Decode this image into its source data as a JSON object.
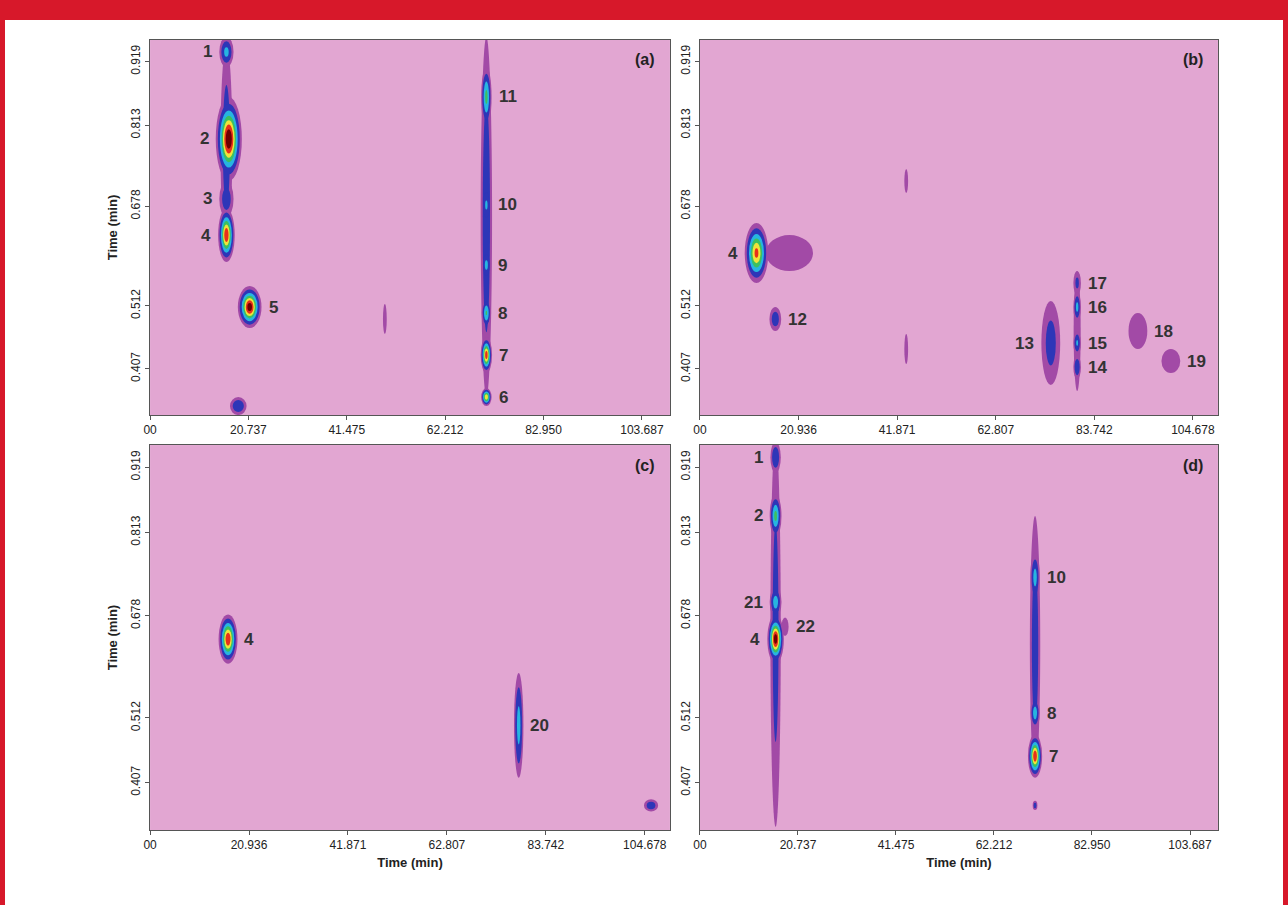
{
  "chart_data": [
    {
      "type": "contour",
      "panel": "(a)",
      "ylabel": "Time (min)",
      "xlim": [
        0,
        109.6
      ],
      "xticks": [
        {
          "value": 0,
          "label": "00"
        },
        20.737,
        41.475,
        62.212,
        {
          "value": 82.95,
          "label": "82.950"
        },
        103.687
      ],
      "ylim": [
        0.33,
        0.955
      ],
      "yticks": [
        0.407,
        0.512,
        0.678,
        0.813,
        0.919
      ],
      "spots": [
        {
          "x": 16.1,
          "y": 0.78,
          "w": 2.5,
          "h": 0.33,
          "z": 0.2
        },
        {
          "label": "1",
          "x": 16.1,
          "y": 0.935,
          "w": 3,
          "h": 0.05,
          "z": 0.3
        },
        {
          "label": "2",
          "x": 16.6,
          "y": 0.79,
          "w": 5.5,
          "h": 0.14,
          "z": 1.0
        },
        {
          "label": "3",
          "x": 16.1,
          "y": 0.69,
          "w": 3,
          "h": 0.06,
          "z": 0.2
        },
        {
          "label": "4",
          "x": 16.1,
          "y": 0.63,
          "w": 3.5,
          "h": 0.09,
          "z": 0.85
        },
        {
          "label": "5",
          "x": 21,
          "y": 0.51,
          "w": 5,
          "h": 0.07,
          "z": 0.95
        },
        {
          "x": 18.6,
          "y": 0.345,
          "w": 3.5,
          "h": 0.03,
          "z": 0.25
        },
        {
          "x": 49.5,
          "y": 0.49,
          "w": 0.8,
          "h": 0.05,
          "z": 0.1
        },
        {
          "x": 70.9,
          "y": 0.66,
          "w": 2.4,
          "h": 0.6,
          "z": 0.22
        },
        {
          "label": "11",
          "x": 70.9,
          "y": 0.86,
          "w": 2.2,
          "h": 0.1,
          "z": 0.45
        },
        {
          "label": "10",
          "x": 70.9,
          "y": 0.68,
          "w": 2,
          "h": 0.06,
          "z": 0.28
        },
        {
          "label": "9",
          "x": 70.9,
          "y": 0.58,
          "w": 2,
          "h": 0.05,
          "z": 0.3
        },
        {
          "label": "8",
          "x": 70.9,
          "y": 0.5,
          "w": 2,
          "h": 0.05,
          "z": 0.42
        },
        {
          "label": "7",
          "x": 70.9,
          "y": 0.43,
          "w": 2.4,
          "h": 0.06,
          "z": 0.8
        },
        {
          "label": "6",
          "x": 70.9,
          "y": 0.36,
          "w": 2.2,
          "h": 0.03,
          "z": 0.7
        }
      ]
    },
    {
      "type": "contour",
      "panel": "(b)",
      "xlim": [
        0,
        110
      ],
      "xticks": [
        {
          "value": 0,
          "label": "00"
        },
        20.936,
        41.871,
        62.807,
        83.742,
        104.678
      ],
      "ylim": [
        0.33,
        0.955
      ],
      "yticks": [
        0.407,
        0.512,
        0.678,
        0.813,
        0.919
      ],
      "spots": [
        {
          "x": 19,
          "y": 0.6,
          "w": 10,
          "h": 0.06,
          "z": 0.1
        },
        {
          "label": "4",
          "x": 12,
          "y": 0.6,
          "w": 5,
          "h": 0.1,
          "z": 0.75
        },
        {
          "label": "12",
          "x": 16,
          "y": 0.49,
          "w": 2.5,
          "h": 0.04,
          "z": 0.2
        },
        {
          "x": 43.8,
          "y": 0.72,
          "w": 0.8,
          "h": 0.04,
          "z": 0.1
        },
        {
          "x": 43.8,
          "y": 0.44,
          "w": 0.8,
          "h": 0.05,
          "z": 0.1
        },
        {
          "label": "13",
          "x": 74.5,
          "y": 0.45,
          "w": 4,
          "h": 0.14,
          "z": 0.17
        },
        {
          "x": 80.1,
          "y": 0.47,
          "w": 1.5,
          "h": 0.2,
          "z": 0.12
        },
        {
          "label": "17",
          "x": 80.1,
          "y": 0.55,
          "w": 1.6,
          "h": 0.04,
          "z": 0.15
        },
        {
          "label": "16",
          "x": 80.1,
          "y": 0.51,
          "w": 1.6,
          "h": 0.05,
          "z": 0.3
        },
        {
          "label": "15",
          "x": 80.1,
          "y": 0.45,
          "w": 1.6,
          "h": 0.04,
          "z": 0.28
        },
        {
          "label": "14",
          "x": 80.1,
          "y": 0.41,
          "w": 1.6,
          "h": 0.04,
          "z": 0.25
        },
        {
          "label": "18",
          "x": 93,
          "y": 0.47,
          "w": 4,
          "h": 0.06,
          "z": 0.1
        },
        {
          "label": "19",
          "x": 100,
          "y": 0.42,
          "w": 4,
          "h": 0.04,
          "z": 0.1
        }
      ]
    },
    {
      "type": "contour",
      "panel": "(c)",
      "xlabel": "Time (min)",
      "ylabel": "Time (min)",
      "xlim": [
        0,
        110
      ],
      "xticks": [
        {
          "value": 0,
          "label": "00"
        },
        20.936,
        41.871,
        62.807,
        83.742,
        104.678
      ],
      "ylim": [
        0.33,
        0.955
      ],
      "yticks": [
        0.407,
        0.512,
        0.678,
        0.813,
        0.919
      ],
      "spots": [
        {
          "label": "4",
          "x": 16.5,
          "y": 0.64,
          "w": 4,
          "h": 0.08,
          "z": 0.85
        },
        {
          "label": "20",
          "x": 78,
          "y": 0.5,
          "w": 2,
          "h": 0.17,
          "z": 0.32
        },
        {
          "x": 106,
          "y": 0.37,
          "w": 3,
          "h": 0.02,
          "z": 0.2
        }
      ]
    },
    {
      "type": "contour",
      "panel": "(d)",
      "xlabel": "Time (min)",
      "xlim": [
        0,
        109.6
      ],
      "xticks": [
        {
          "value": 0,
          "label": "00"
        },
        20.737,
        41.475,
        62.212,
        {
          "value": 82.95,
          "label": "82.950"
        },
        103.687
      ],
      "ylim": [
        0.33,
        0.955
      ],
      "yticks": [
        0.407,
        0.512,
        0.678,
        0.813,
        0.919
      ],
      "spots": [
        {
          "x": 16,
          "y": 0.65,
          "w": 2.2,
          "h": 0.63,
          "z": 0.18
        },
        {
          "label": "1",
          "x": 16,
          "y": 0.935,
          "w": 2.2,
          "h": 0.05,
          "z": 0.25
        },
        {
          "label": "2",
          "x": 16,
          "y": 0.84,
          "w": 2.5,
          "h": 0.07,
          "z": 0.45
        },
        {
          "label": "21",
          "x": 16,
          "y": 0.7,
          "w": 2.5,
          "h": 0.05,
          "z": 0.35
        },
        {
          "label": "4",
          "x": 16,
          "y": 0.64,
          "w": 3.5,
          "h": 0.08,
          "z": 0.95
        },
        {
          "label": "22",
          "x": 18,
          "y": 0.66,
          "w": 1.5,
          "h": 0.03,
          "z": 0.12
        },
        {
          "x": 70.9,
          "y": 0.63,
          "w": 2.2,
          "h": 0.42,
          "z": 0.2
        },
        {
          "label": "10",
          "x": 70.9,
          "y": 0.74,
          "w": 2,
          "h": 0.08,
          "z": 0.32
        },
        {
          "label": "8",
          "x": 70.9,
          "y": 0.52,
          "w": 2,
          "h": 0.05,
          "z": 0.35
        },
        {
          "label": "7",
          "x": 70.9,
          "y": 0.45,
          "w": 3,
          "h": 0.07,
          "z": 0.85
        },
        {
          "x": 70.9,
          "y": 0.37,
          "w": 1,
          "h": 0.015,
          "z": 0.2
        }
      ]
    }
  ]
}
